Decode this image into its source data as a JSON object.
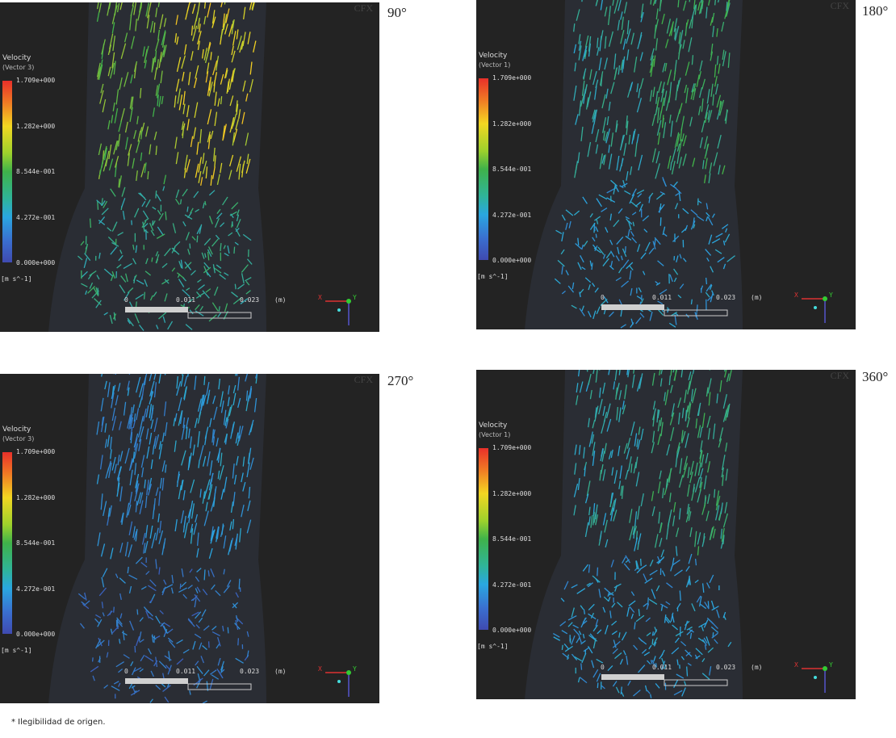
{
  "panels": [
    {
      "angle": "90°",
      "legend_title": "Velocity",
      "legend_variable": "(Vector 3)",
      "intensity": 0.62
    },
    {
      "angle": "180°",
      "legend_title": "Velocity",
      "legend_variable": "(Vector 1)",
      "intensity": 0.38
    },
    {
      "angle": "270°",
      "legend_title": "Velocity",
      "legend_variable": "(Vector 3)",
      "intensity": 0.2
    },
    {
      "angle": "360°",
      "legend_title": "Velocity",
      "legend_variable": "(Vector 1)",
      "intensity": 0.36
    }
  ],
  "legend": {
    "ticks": [
      "1.709e+000",
      "1.282e+000",
      "8.544e-001",
      "4.272e-001",
      "0.000e+000"
    ],
    "units": "[m s^-1]",
    "colormap": [
      "#e8302a",
      "#f2d722",
      "#3fb24a",
      "#2aa7e0",
      "#3f4ab0"
    ]
  },
  "scale_bar": {
    "labels": [
      "0",
      "0.011",
      "0.023"
    ],
    "unit": "(m)"
  },
  "axes": {
    "x": "X",
    "y": "Y",
    "z": "Z"
  },
  "logo": "CFX",
  "footnote": "* Ilegibilidad de origen."
}
